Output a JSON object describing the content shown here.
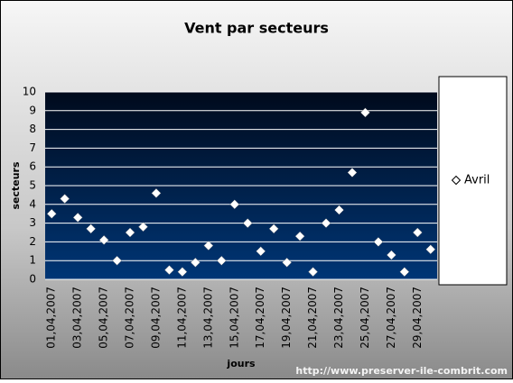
{
  "chart_data": {
    "type": "scatter",
    "title": "Vent par secteurs",
    "x_label": "jours",
    "y_label": "secteurs",
    "source": "http://www.preserver-ile-combrit.com",
    "categories": [
      "01,04,2007",
      null,
      "03,04,2007",
      null,
      "05,04,2007",
      null,
      "07,04,2007",
      null,
      "09,04,2007",
      null,
      "11,04,2007",
      null,
      "13,04,2007",
      null,
      "15,04,2007",
      null,
      "17,04,2007",
      null,
      "19,04,2007",
      null,
      "21,04,2007",
      null,
      "23,04,2007",
      null,
      "25,04,2007",
      null,
      "27,04,2007",
      null,
      "29,04,2007",
      null
    ],
    "series": [
      {
        "name": "Avril",
        "color": "#ffffff",
        "values": [
          3.5,
          4.3,
          3.3,
          2.7,
          2.1,
          1.0,
          2.5,
          2.8,
          4.6,
          0.5,
          0.4,
          0.9,
          1.8,
          1.0,
          4.0,
          3.0,
          1.5,
          2.7,
          0.9,
          2.3,
          0.4,
          3.0,
          3.7,
          5.7,
          8.9,
          2.0,
          1.3,
          0.4,
          2.5,
          1.6
        ]
      }
    ],
    "ylim": [
      0,
      10
    ],
    "yticks": [
      0,
      1,
      2,
      3,
      4,
      5,
      6,
      7,
      8,
      9,
      10
    ],
    "grid": true,
    "legend": "right"
  }
}
